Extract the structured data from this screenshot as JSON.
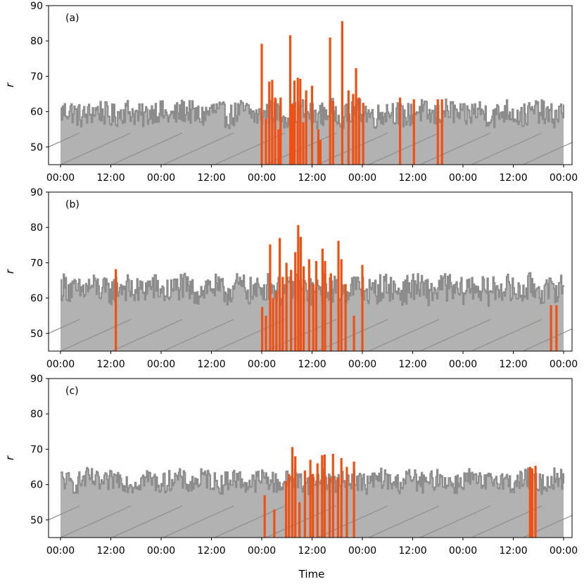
{
  "figure": {
    "xlabel": "Time",
    "ylabel": "r",
    "x_tick_labels": [
      "00:00",
      "12:00",
      "00:00",
      "12:00",
      "00:00",
      "12:00",
      "00:00",
      "12:00",
      "00:00",
      "12:00",
      "00:00"
    ],
    "y_ticks": [
      50,
      60,
      70,
      80,
      90
    ],
    "ylim": [
      45,
      90
    ],
    "xlim_hours": [
      0,
      120
    ],
    "colors": {
      "background_series": "#8c8c8c",
      "fill": "#b2b2b2",
      "hatch": "#8c8c8c",
      "anomaly": "#f25012",
      "axes": "#000000"
    }
  },
  "chart_data": [
    {
      "type": "area",
      "panel_label": "(a)",
      "ylim": [
        45,
        90
      ],
      "series": [
        {
          "baseline_mean": 59.5,
          "baseline_amplitude": 3.5
        }
      ],
      "anomaly_spikes": [
        {
          "x": 48.0,
          "y": 79.2
        },
        {
          "x": 49.0,
          "y": 58.0
        },
        {
          "x": 49.8,
          "y": 68.5
        },
        {
          "x": 50.5,
          "y": 69.0
        },
        {
          "x": 51.2,
          "y": 64.0
        },
        {
          "x": 52.0,
          "y": 55.0
        },
        {
          "x": 52.5,
          "y": 64.0
        },
        {
          "x": 54.8,
          "y": 81.6
        },
        {
          "x": 55.3,
          "y": 62.0
        },
        {
          "x": 55.8,
          "y": 68.8
        },
        {
          "x": 56.6,
          "y": 69.6
        },
        {
          "x": 57.2,
          "y": 69.3
        },
        {
          "x": 57.9,
          "y": 57.0
        },
        {
          "x": 58.6,
          "y": 66.0
        },
        {
          "x": 60.0,
          "y": 67.3
        },
        {
          "x": 61.5,
          "y": 55.0
        },
        {
          "x": 62.0,
          "y": 52.0
        },
        {
          "x": 64.3,
          "y": 81.0
        },
        {
          "x": 65.0,
          "y": 63.0
        },
        {
          "x": 67.2,
          "y": 85.6
        },
        {
          "x": 68.7,
          "y": 66.0
        },
        {
          "x": 69.8,
          "y": 65.0
        },
        {
          "x": 70.5,
          "y": 72.3
        },
        {
          "x": 71.2,
          "y": 64.0
        },
        {
          "x": 72.2,
          "y": 62.5
        },
        {
          "x": 81.0,
          "y": 64.0
        },
        {
          "x": 84.3,
          "y": 63.5
        },
        {
          "x": 90.0,
          "y": 63.5
        },
        {
          "x": 91.0,
          "y": 63.5
        }
      ]
    },
    {
      "type": "area",
      "panel_label": "(b)",
      "ylim": [
        45,
        90
      ],
      "series": [
        {
          "baseline_mean": 62.5,
          "baseline_amplitude": 4.0
        }
      ],
      "anomaly_spikes": [
        {
          "x": 13.2,
          "y": 68.2
        },
        {
          "x": 48.1,
          "y": 57.5
        },
        {
          "x": 49.0,
          "y": 55.0
        },
        {
          "x": 50.0,
          "y": 75.2
        },
        {
          "x": 50.7,
          "y": 60.0
        },
        {
          "x": 51.5,
          "y": 62.0
        },
        {
          "x": 52.3,
          "y": 77.0
        },
        {
          "x": 53.0,
          "y": 66.0
        },
        {
          "x": 53.9,
          "y": 70.0
        },
        {
          "x": 55.0,
          "y": 68.0
        },
        {
          "x": 56.0,
          "y": 73.0
        },
        {
          "x": 56.7,
          "y": 80.7
        },
        {
          "x": 57.3,
          "y": 77.3
        },
        {
          "x": 58.0,
          "y": 69.0
        },
        {
          "x": 59.3,
          "y": 71.0
        },
        {
          "x": 60.3,
          "y": 64.0
        },
        {
          "x": 61.0,
          "y": 70.5
        },
        {
          "x": 62.5,
          "y": 74.0
        },
        {
          "x": 63.1,
          "y": 70.5
        },
        {
          "x": 64.5,
          "y": 67.0
        },
        {
          "x": 66.3,
          "y": 76.2
        },
        {
          "x": 67.0,
          "y": 71.0
        },
        {
          "x": 68.0,
          "y": 64.0
        },
        {
          "x": 70.0,
          "y": 55.0
        },
        {
          "x": 72.0,
          "y": 69.4
        },
        {
          "x": 117.0,
          "y": 58.0
        },
        {
          "x": 118.3,
          "y": 58.0
        }
      ]
    },
    {
      "type": "area",
      "panel_label": "(c)",
      "ylim": [
        45,
        90
      ],
      "series": [
        {
          "baseline_mean": 61.0,
          "baseline_amplitude": 3.0
        }
      ],
      "anomaly_spikes": [
        {
          "x": 48.7,
          "y": 57.0
        },
        {
          "x": 51.0,
          "y": 53.0
        },
        {
          "x": 53.8,
          "y": 61.0
        },
        {
          "x": 54.5,
          "y": 63.0
        },
        {
          "x": 55.3,
          "y": 70.6
        },
        {
          "x": 56.0,
          "y": 68.0
        },
        {
          "x": 57.0,
          "y": 55.0
        },
        {
          "x": 58.3,
          "y": 64.0
        },
        {
          "x": 59.6,
          "y": 67.0
        },
        {
          "x": 60.2,
          "y": 63.0
        },
        {
          "x": 61.3,
          "y": 66.0
        },
        {
          "x": 62.4,
          "y": 68.3
        },
        {
          "x": 63.0,
          "y": 68.5
        },
        {
          "x": 64.2,
          "y": 62.0
        },
        {
          "x": 65.0,
          "y": 68.7
        },
        {
          "x": 66.2,
          "y": 62.0
        },
        {
          "x": 67.0,
          "y": 67.5
        },
        {
          "x": 68.3,
          "y": 65.0
        },
        {
          "x": 70.0,
          "y": 66.5
        },
        {
          "x": 112.0,
          "y": 65.0
        },
        {
          "x": 112.5,
          "y": 64.5
        },
        {
          "x": 113.3,
          "y": 65.3
        }
      ]
    }
  ]
}
